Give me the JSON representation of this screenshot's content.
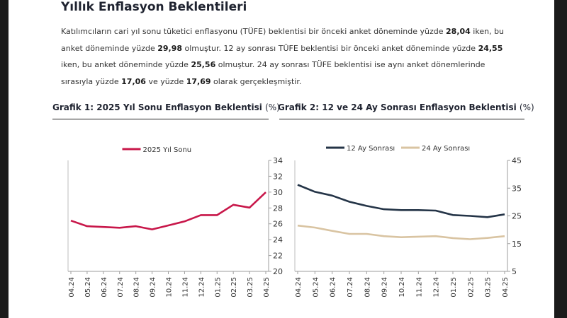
{
  "heading": "Yıllık Enflasyon Beklentileri",
  "paragraph": [
    {
      "t": "Katılımcıların cari yıl sonu tüketici enflasyonu (TÜFE) beklentisi bir önceki anket döneminde yüzde "
    },
    {
      "b": "28,04"
    },
    {
      "t": " iken, bu anket döneminde yüzde "
    },
    {
      "b": "29,98"
    },
    {
      "t": " olmuştur. 12 ay sonrası TÜFE beklentisi bir önceki anket döneminde yüzde "
    },
    {
      "b": "24,55"
    },
    {
      "t": " iken, bu anket döneminde yüzde "
    },
    {
      "b": "25,56"
    },
    {
      "t": " olmuştur. 24 ay sonrası TÜFE beklentisi ise aynı anket dönemlerinde sırasıyla yüzde "
    },
    {
      "b": "17,06"
    },
    {
      "t": " ve yüzde "
    },
    {
      "b": "17,69"
    },
    {
      "t": " olarak gerçekleşmiştir."
    }
  ],
  "chart1_title": "Grafik 1: 2025 Yıl Sonu Enflasyon Beklentisi",
  "chart1_unit": "(%)",
  "chart2_title": "Grafik 2: 12 ve 24 Ay Sonrası Enflasyon Beklentisi",
  "chart2_unit": "(%)",
  "chart_data": [
    {
      "type": "line",
      "title": "Grafik 1: 2025 Yıl Sonu Enflasyon Beklentisi (%)",
      "categories": [
        "04.24",
        "05.24",
        "06.24",
        "07.24",
        "08.24",
        "09.24",
        "10.24",
        "11.24",
        "12.24",
        "01.25",
        "02.25",
        "03.25",
        "04.25"
      ],
      "series": [
        {
          "name": "2025 Yıl Sonu",
          "color": "#c8174a",
          "values": [
            26.4,
            25.7,
            25.6,
            25.5,
            25.7,
            25.3,
            25.8,
            26.3,
            27.1,
            27.1,
            28.4,
            28.04,
            29.98
          ]
        }
      ],
      "y_axis": {
        "position": "right",
        "ylim": [
          20,
          34
        ],
        "ticks": [
          20,
          22,
          24,
          26,
          28,
          30,
          32,
          34
        ]
      },
      "grid": false,
      "legend": "top-center"
    },
    {
      "type": "line",
      "title": "Grafik 2: 12 ve 24 Ay Sonrası Enflasyon Beklentisi (%)",
      "categories": [
        "04.24",
        "05.24",
        "06.24",
        "07.24",
        "08.24",
        "09.24",
        "10.24",
        "11.24",
        "12.24",
        "01.25",
        "02.25",
        "03.25",
        "04.25"
      ],
      "series": [
        {
          "name": "12 Ay Sonrası",
          "color": "#243447",
          "values": [
            36.2,
            33.7,
            32.3,
            30.1,
            28.6,
            27.4,
            27.1,
            27.1,
            26.9,
            25.3,
            25.0,
            24.55,
            25.56
          ]
        },
        {
          "name": "24 Ay Sonrası",
          "color": "#d9c4a2",
          "values": [
            21.5,
            20.8,
            19.6,
            18.5,
            18.5,
            17.7,
            17.3,
            17.5,
            17.7,
            17.0,
            16.6,
            17.06,
            17.69
          ]
        }
      ],
      "y_axis": {
        "position": "right",
        "ylim": [
          5,
          45
        ],
        "ticks": [
          5,
          15,
          25,
          35,
          45
        ]
      },
      "grid": false,
      "legend": "top-center"
    }
  ]
}
